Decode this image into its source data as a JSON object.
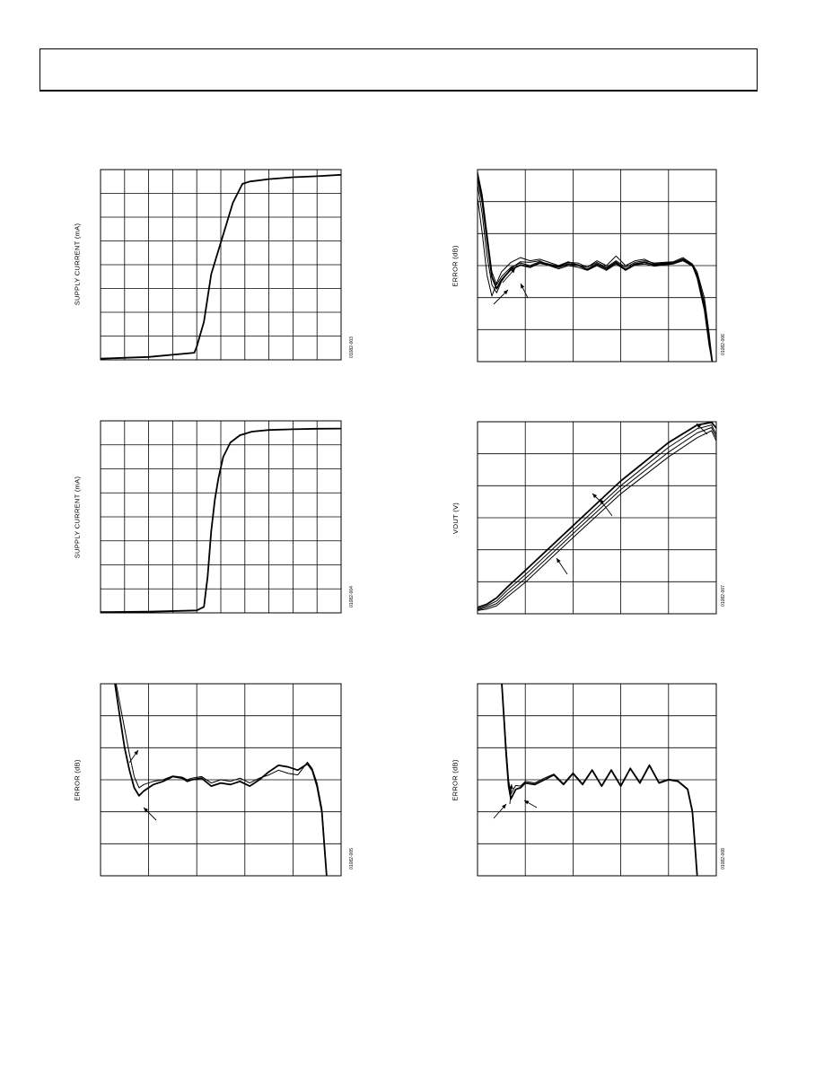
{
  "page": {
    "header": ""
  },
  "chart_data": [
    {
      "type": "line",
      "ylabel": "SUPPLY CURRENT (mA)",
      "figure_id": "01082-003",
      "xlim": [
        0,
        10
      ],
      "ylim": [
        0,
        8
      ],
      "grid": true,
      "series": [
        {
          "x": [
            0,
            2.0,
            3.9,
            4.0,
            4.3,
            4.6,
            4.9,
            5.2,
            5.5,
            5.9,
            6.2,
            7,
            8,
            9,
            10
          ],
          "y": [
            0.05,
            0.12,
            0.3,
            0.55,
            1.6,
            3.6,
            4.6,
            5.6,
            6.6,
            7.4,
            7.5,
            7.6,
            7.68,
            7.72,
            7.78
          ]
        }
      ]
    },
    {
      "type": "line",
      "ylabel": "ERROR (dB)",
      "figure_id": "01082-006",
      "xlim": [
        0,
        5
      ],
      "ylim": [
        -3,
        3
      ],
      "grid": true,
      "series": [
        {
          "x": [
            -0.05,
            0.1,
            0.2,
            0.3,
            0.4,
            0.5,
            0.7,
            0.9,
            1.1,
            1.3,
            1.5,
            1.7,
            1.9,
            2.1,
            2.3,
            2.5,
            2.7,
            2.9,
            3.1,
            3.3,
            3.5,
            3.7,
            3.9,
            4.1,
            4.3,
            4.5,
            4.6,
            4.75,
            4.85,
            4.92
          ],
          "y": [
            3.2,
            2.0,
            0.8,
            -0.35,
            -0.72,
            -0.45,
            -0.12,
            0.02,
            -0.05,
            0.08,
            0.02,
            -0.05,
            0.05,
            0.02,
            -0.12,
            0.05,
            -0.1,
            0.1,
            -0.12,
            0.05,
            0.1,
            0.02,
            0.05,
            0.08,
            0.2,
            0.02,
            -0.3,
            -1.2,
            -2.3,
            -3.05
          ]
        },
        {
          "x": [
            -0.05,
            0.1,
            0.2,
            0.3,
            0.4,
            0.5,
            0.7,
            0.9,
            1.1,
            1.3,
            1.5,
            1.7,
            1.9,
            2.1,
            2.3,
            2.5,
            2.7,
            2.9,
            3.1,
            3.3,
            3.5,
            3.7,
            3.9,
            4.1,
            4.3,
            4.5,
            4.6,
            4.75,
            4.85,
            4.92
          ],
          "y": [
            3.3,
            2.2,
            1.0,
            -0.2,
            -0.6,
            -0.35,
            -0.05,
            0.08,
            0.0,
            0.12,
            0.05,
            -0.02,
            0.1,
            0.08,
            -0.05,
            0.1,
            -0.05,
            0.15,
            -0.05,
            0.1,
            0.15,
            0.08,
            0.1,
            0.12,
            0.25,
            0.05,
            -0.2,
            -1.0,
            -2.1,
            -3.05
          ]
        },
        {
          "x": [
            -0.05,
            0.1,
            0.2,
            0.3,
            0.4,
            0.5,
            0.7,
            0.9,
            1.1,
            1.3,
            1.5,
            1.7,
            1.9,
            2.1,
            2.3,
            2.5,
            2.7,
            2.9,
            3.1,
            3.3,
            3.5,
            3.7,
            3.9,
            4.1,
            4.3,
            4.5,
            4.6,
            4.75,
            4.85,
            4.92
          ],
          "y": [
            3.0,
            1.6,
            0.3,
            -0.6,
            -0.85,
            -0.5,
            -0.08,
            0.12,
            0.1,
            0.15,
            0.0,
            -0.1,
            0.0,
            -0.05,
            -0.15,
            0.0,
            -0.15,
            0.05,
            -0.15,
            0.02,
            0.05,
            -0.02,
            0.02,
            0.05,
            0.15,
            -0.02,
            -0.35,
            -1.3,
            -2.4,
            -3.05
          ]
        },
        {
          "x": [
            -0.05,
            0.1,
            0.2,
            0.3,
            0.4,
            0.5,
            0.7,
            0.9,
            1.1,
            1.3,
            1.5,
            1.7,
            1.9,
            2.1,
            2.3,
            2.5,
            2.7,
            2.9,
            3.1,
            3.3,
            3.5,
            3.7,
            3.9,
            4.1,
            4.3,
            4.5,
            4.6,
            4.75,
            4.85,
            4.92
          ],
          "y": [
            2.7,
            1.0,
            -0.3,
            -0.95,
            -0.55,
            -0.2,
            0.1,
            0.25,
            0.15,
            0.2,
            0.1,
            0.0,
            0.12,
            0.02,
            -0.05,
            0.15,
            0.0,
            0.3,
            0.0,
            0.15,
            0.2,
            0.05,
            0.08,
            0.1,
            0.18,
            0.0,
            -0.4,
            -1.4,
            -2.5,
            -3.05
          ]
        }
      ]
    },
    {
      "type": "line",
      "ylabel": "SUPPLY CURRENT (mA)",
      "figure_id": "01082-004",
      "xlim": [
        0,
        10
      ],
      "ylim": [
        0,
        8
      ],
      "grid": true,
      "series": [
        {
          "x": [
            0,
            2,
            4.0,
            4.3,
            4.45,
            4.6,
            4.75,
            4.9,
            5.1,
            5.4,
            5.8,
            6.3,
            7,
            8,
            9,
            10
          ],
          "y": [
            0.03,
            0.05,
            0.1,
            0.25,
            1.5,
            3.4,
            4.7,
            5.6,
            6.5,
            7.1,
            7.4,
            7.55,
            7.62,
            7.65,
            7.67,
            7.68
          ]
        }
      ]
    },
    {
      "type": "line",
      "ylabel": "VOUT (V)",
      "figure_id": "01082-007",
      "xlim": [
        0,
        5
      ],
      "ylim": [
        0,
        6
      ],
      "grid": true,
      "series": [
        {
          "x": [
            0,
            0.2,
            0.4,
            0.6,
            1,
            2,
            3,
            4,
            4.6,
            4.9,
            5.0
          ],
          "y": [
            0.2,
            0.3,
            0.5,
            0.8,
            1.35,
            2.75,
            4.15,
            5.35,
            5.9,
            5.98,
            5.8
          ]
        },
        {
          "x": [
            0,
            0.2,
            0.4,
            0.6,
            1,
            2,
            3,
            4,
            4.6,
            4.9,
            5.0
          ],
          "y": [
            0.15,
            0.25,
            0.4,
            0.7,
            1.22,
            2.62,
            4.0,
            5.2,
            5.78,
            5.9,
            5.6
          ]
        },
        {
          "x": [
            0,
            0.2,
            0.4,
            0.6,
            1,
            2,
            3,
            4,
            4.6,
            4.9,
            5.0
          ],
          "y": [
            0.12,
            0.2,
            0.32,
            0.6,
            1.1,
            2.5,
            3.88,
            5.05,
            5.65,
            5.82,
            5.5
          ]
        },
        {
          "x": [
            0,
            0.2,
            0.4,
            0.6,
            1,
            2,
            3,
            4,
            4.6,
            4.9,
            5.0
          ],
          "y": [
            0.1,
            0.15,
            0.25,
            0.5,
            0.98,
            2.38,
            3.75,
            4.9,
            5.5,
            5.72,
            5.4
          ]
        }
      ]
    },
    {
      "type": "line",
      "ylabel": "ERROR (dB)",
      "figure_id": "01082-005",
      "xlim": [
        0,
        5
      ],
      "ylim": [
        -3,
        3
      ],
      "grid": true,
      "series": [
        {
          "x": [
            0.3,
            0.4,
            0.5,
            0.6,
            0.7,
            0.8,
            0.9,
            1.1,
            1.3,
            1.5,
            1.7,
            1.8,
            1.9,
            2.1,
            2.3,
            2.5,
            2.7,
            2.9,
            3.1,
            3.3,
            3.5,
            3.7,
            3.9,
            4.1,
            4.3,
            4.4,
            4.5,
            4.6,
            4.65,
            4.7
          ],
          "y": [
            3.0,
            2.0,
            1.0,
            0.3,
            -0.25,
            -0.5,
            -0.35,
            -0.15,
            -0.05,
            0.1,
            0.05,
            -0.05,
            0.0,
            0.05,
            -0.2,
            -0.1,
            -0.15,
            -0.05,
            -0.2,
            0.0,
            0.25,
            0.45,
            0.4,
            0.3,
            0.5,
            0.3,
            -0.2,
            -1.0,
            -2.0,
            -3.0
          ]
        },
        {
          "x": [
            0.3,
            0.4,
            0.5,
            0.6,
            0.7,
            0.8,
            0.9,
            1.1,
            1.3,
            1.5,
            1.7,
            1.8,
            1.9,
            2.1,
            2.3,
            2.5,
            2.7,
            2.9,
            3.1,
            3.3,
            3.5,
            3.7,
            3.9,
            4.1,
            4.3,
            4.4,
            4.5,
            4.6,
            4.65,
            4.7
          ],
          "y": [
            3.2,
            2.4,
            1.6,
            0.8,
            0.1,
            -0.25,
            -0.15,
            -0.05,
            0.0,
            0.12,
            0.08,
            0.0,
            0.05,
            0.1,
            -0.1,
            0.0,
            -0.05,
            0.05,
            -0.1,
            0.05,
            0.15,
            0.3,
            0.2,
            0.15,
            0.55,
            0.35,
            -0.1,
            -0.9,
            -1.9,
            -3.0
          ]
        }
      ]
    },
    {
      "type": "line",
      "ylabel": "ERROR (dB)",
      "figure_id": "01082-008",
      "xlim": [
        0,
        5
      ],
      "ylim": [
        -3,
        3
      ],
      "grid": true,
      "series": [
        {
          "x": [
            0.5,
            0.55,
            0.6,
            0.65,
            0.7,
            0.75,
            0.8,
            0.9,
            1.0,
            1.2,
            1.4,
            1.6,
            1.8,
            2.0,
            2.2,
            2.4,
            2.6,
            2.8,
            3.0,
            3.2,
            3.4,
            3.6,
            3.8,
            4.0,
            4.2,
            4.4,
            4.5,
            4.55,
            4.6
          ],
          "y": [
            3.2,
            2.0,
            0.8,
            -0.2,
            -0.6,
            -0.45,
            -0.3,
            -0.25,
            -0.1,
            -0.15,
            0.0,
            0.15,
            -0.15,
            0.2,
            -0.15,
            0.3,
            -0.2,
            0.3,
            -0.2,
            0.35,
            -0.1,
            0.45,
            -0.1,
            0.0,
            -0.05,
            -0.3,
            -1.0,
            -2.0,
            -3.0
          ]
        },
        {
          "x": [
            0.5,
            0.55,
            0.6,
            0.65,
            0.7,
            0.75,
            0.8,
            0.9,
            1.0,
            1.2,
            1.4,
            1.6,
            1.8,
            2.0,
            2.2,
            2.4,
            2.6,
            2.8,
            3.0,
            3.2,
            3.4,
            3.6,
            3.8,
            4.0,
            4.2,
            4.4,
            4.5,
            4.55,
            4.6
          ],
          "y": [
            3.2,
            2.1,
            1.0,
            0.0,
            -0.45,
            -0.3,
            -0.18,
            -0.2,
            -0.05,
            -0.1,
            0.05,
            0.18,
            -0.12,
            0.22,
            -0.12,
            0.32,
            -0.18,
            0.32,
            -0.18,
            0.37,
            -0.08,
            0.47,
            -0.08,
            0.02,
            -0.03,
            -0.28,
            -0.95,
            -1.95,
            -3.0
          ]
        }
      ]
    }
  ]
}
